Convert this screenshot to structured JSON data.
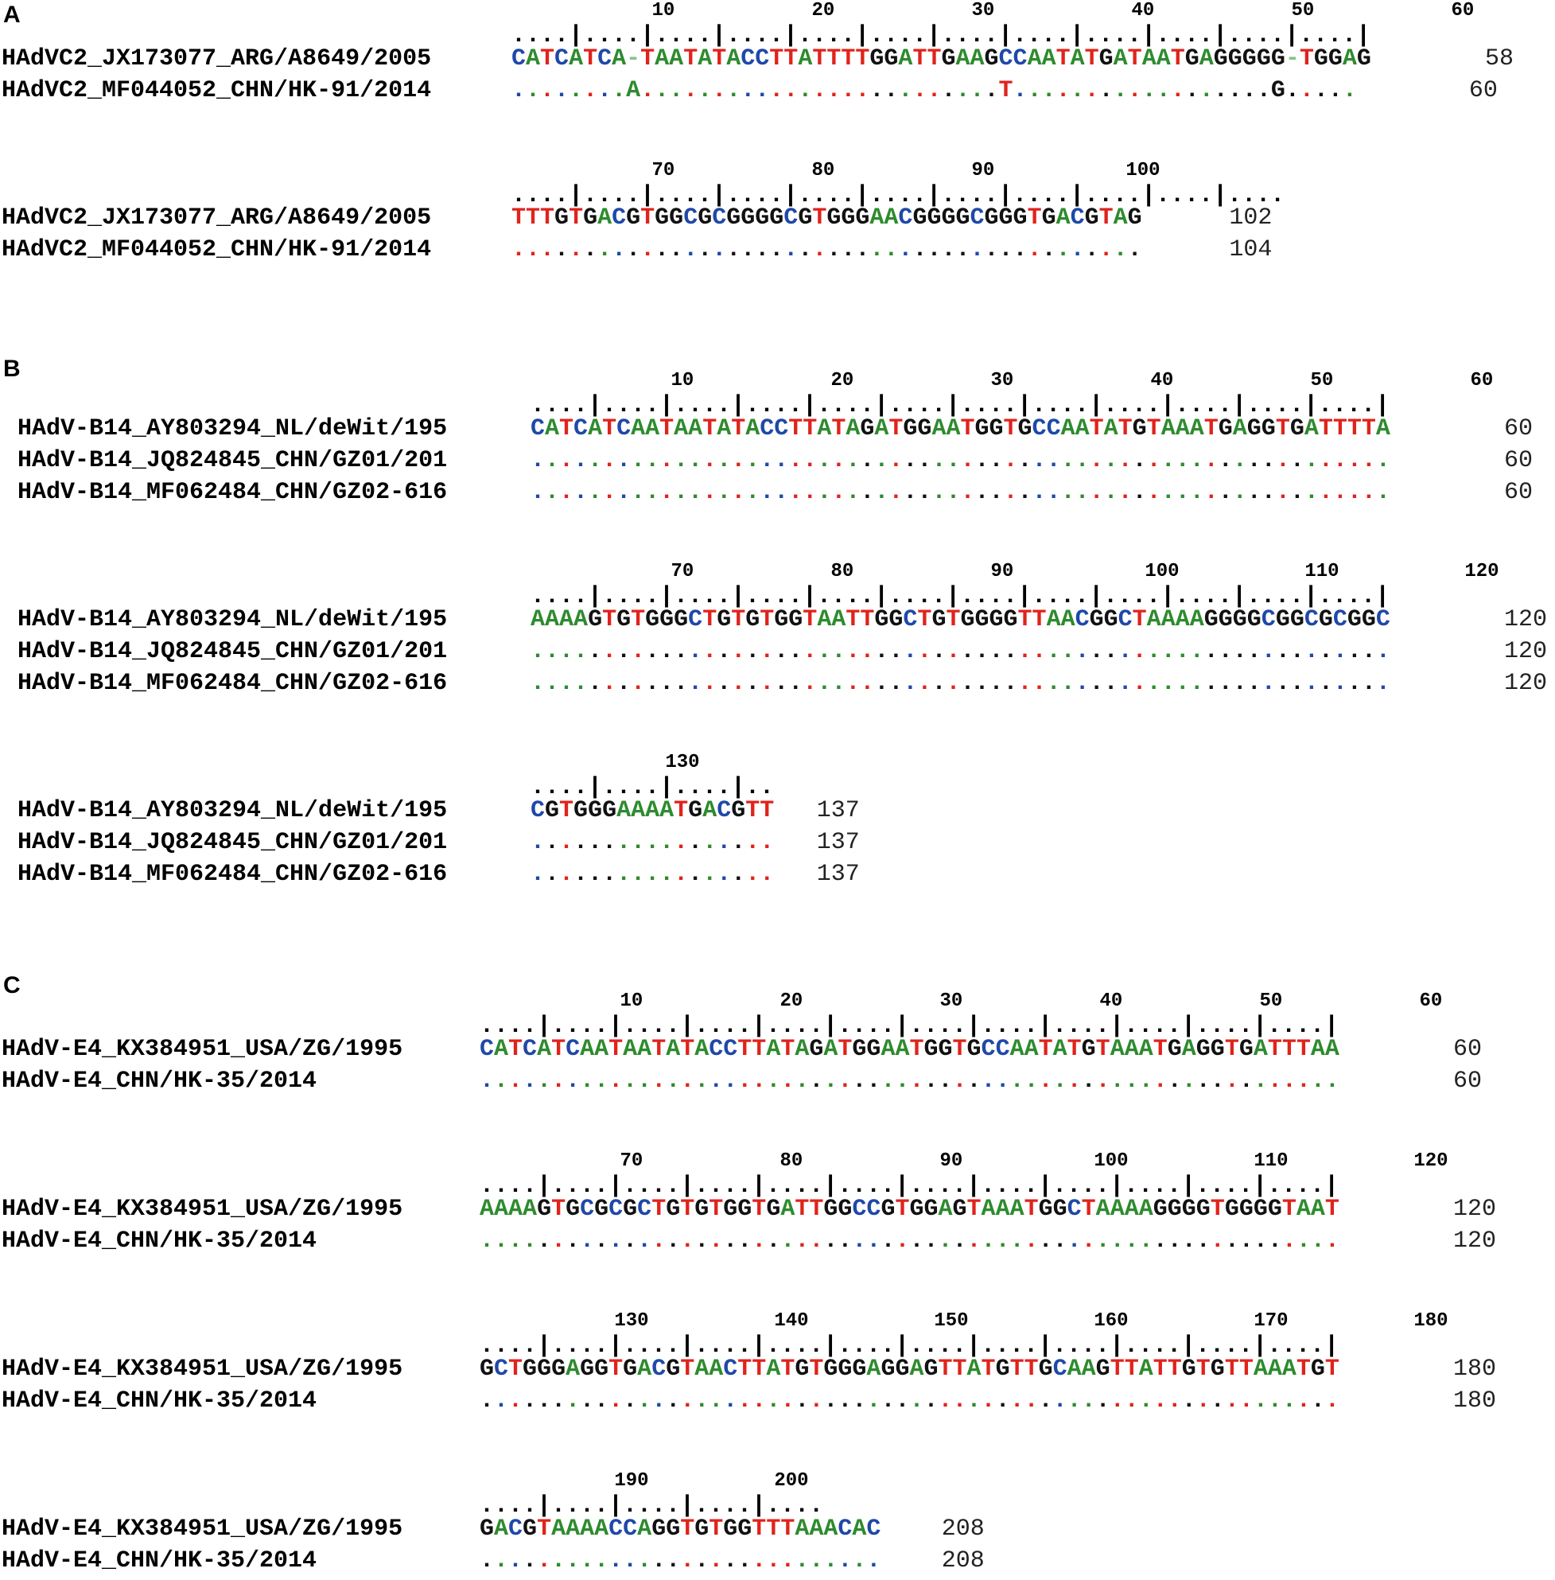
{
  "colors": {
    "A": "#2e8b2e",
    "T": "#e0231b",
    "C": "#1f48a8",
    "G": "#111111",
    "gap": "#8cbf8c"
  },
  "panels": [
    {
      "label": "A",
      "blocks": [
        {
          "tick_labels": [
            "10",
            "20",
            "30",
            "40",
            "50",
            "60"
          ],
          "ruler": "....|....|....|....|....|....|....|....|....|....|....|....|",
          "rows": [
            {
              "name": "HAdVC2_JX173077_ARG/A8649/2005",
              "seq": "CATCATCA-TAATATACCTTATTTTGGATTGAAGCCAATATGATAATGAGGGGG-TGGAG",
              "count": "58"
            },
            {
              "name": "HAdVC2_MF044052_CHN/HK-91/2014",
              "seq": "........A.........................T..................G.....",
              "count": "60"
            }
          ]
        },
        {
          "tick_labels": [
            "70",
            "80",
            "90",
            "100"
          ],
          "ruler": "....|....|....|....|....|....|....|....|....|....|....",
          "rows": [
            {
              "name": "HAdVC2_JX173077_ARG/A8649/2005",
              "seq": "TTTGTGACGTGGCGCGGGGCGTGGGAACGGGGCGGGTGACGTAG",
              "count": "102"
            },
            {
              "name": "HAdVC2_MF044052_CHN/HK-91/2014",
              "seq": "............................................",
              "count": "104"
            }
          ]
        }
      ]
    },
    {
      "label": "B",
      "blocks": [
        {
          "tick_labels": [
            "10",
            "20",
            "30",
            "40",
            "50",
            "60"
          ],
          "ruler": "....|....|....|....|....|....|....|....|....|....|....|....|",
          "rows": [
            {
              "name": "HAdV-B14_AY803294_NL/deWit/195",
              "seq": "CATCATCAATAATATACCTTATAGATGGAATGGTGCCAATATGTAAATGAGGTGATTTTA",
              "count": "60"
            },
            {
              "name": "HAdV-B14_JQ824845_CHN/GZ01/201",
              "seq": "............................................................",
              "count": "60"
            },
            {
              "name": "HAdV-B14_MF062484_CHN/GZ02-616",
              "seq": "............................................................",
              "count": "60"
            }
          ]
        },
        {
          "tick_labels": [
            "70",
            "80",
            "90",
            "100",
            "110",
            "120"
          ],
          "ruler": "....|....|....|....|....|....|....|....|....|....|....|....|",
          "rows": [
            {
              "name": "HAdV-B14_AY803294_NL/deWit/195",
              "seq": "AAAAGTGTGGGCTGTGTGGTAATTGGCTGTGGGGTTAACGGCTAAAAGGGGCGGCGCGGC",
              "count": "120"
            },
            {
              "name": "HAdV-B14_JQ824845_CHN/GZ01/201",
              "seq": "............................................................",
              "count": "120"
            },
            {
              "name": "HAdV-B14_MF062484_CHN/GZ02-616",
              "seq": "............................................................",
              "count": "120"
            }
          ]
        },
        {
          "tick_labels": [
            "130"
          ],
          "ruler": "....|....|....|..",
          "rows": [
            {
              "name": "HAdV-B14_AY803294_NL/deWit/195",
              "seq": "CGTGGGAAAATGACGTT",
              "count": "137"
            },
            {
              "name": "HAdV-B14_JQ824845_CHN/GZ01/201",
              "seq": ".................",
              "count": "137"
            },
            {
              "name": "HAdV-B14_MF062484_CHN/GZ02-616",
              "seq": ".................",
              "count": "137"
            }
          ]
        }
      ]
    },
    {
      "label": "C",
      "blocks": [
        {
          "tick_labels": [
            "10",
            "20",
            "30",
            "40",
            "50",
            "60"
          ],
          "ruler": "....|....|....|....|....|....|....|....|....|....|....|....|",
          "rows": [
            {
              "name": "HAdV-E4_KX384951_USA/ZG/1995",
              "seq": "CATCATCAATAATATACCTTATAGATGGAATGGTGCCAATATGTAAATGAGGTGATTTAA",
              "count": "60"
            },
            {
              "name": "HAdV-E4_CHN/HK-35/2014",
              "seq": "............................................................",
              "count": "60"
            }
          ]
        },
        {
          "tick_labels": [
            "70",
            "80",
            "90",
            "100",
            "110",
            "120"
          ],
          "ruler": "....|....|....|....|....|....|....|....|....|....|....|....|",
          "rows": [
            {
              "name": "HAdV-E4_KX384951_USA/ZG/1995",
              "seq": "AAAAGTGCGCGCTGTGTGGTGATTGGCCGTGGAGTAAATGGCTAAAAGGGGTGGGGTAAT",
              "count": "120"
            },
            {
              "name": "HAdV-E4_CHN/HK-35/2014",
              "seq": "............................................................",
              "count": "120"
            }
          ]
        },
        {
          "tick_labels": [
            "130",
            "140",
            "150",
            "160",
            "170",
            "180"
          ],
          "ruler": "....|....|....|....|....|....|....|....|....|....|....|....|",
          "rows": [
            {
              "name": "HAdV-E4_KX384951_USA/ZG/1995",
              "seq": "GCTGGGAGGTGACGTAACTTATGTGGGAGGAGTTATGTTGCAAGTTATTGTGTTAAATGT",
              "count": "180"
            },
            {
              "name": "HAdV-E4_CHN/HK-35/2014",
              "seq": "............................................................",
              "count": "180"
            }
          ]
        },
        {
          "tick_labels": [
            "190",
            "200"
          ],
          "ruler": "....|....|....|....|....",
          "rows": [
            {
              "name": "HAdV-E4_KX384951_USA/ZG/1995",
              "seq": "GACGTAAAACCAGGTGTGGTTTAAACAC",
              "count": "208"
            },
            {
              "name": "HAdV-E4_CHN/HK-35/2014",
              "seq": "............................",
              "count": "208"
            }
          ]
        }
      ]
    }
  ]
}
